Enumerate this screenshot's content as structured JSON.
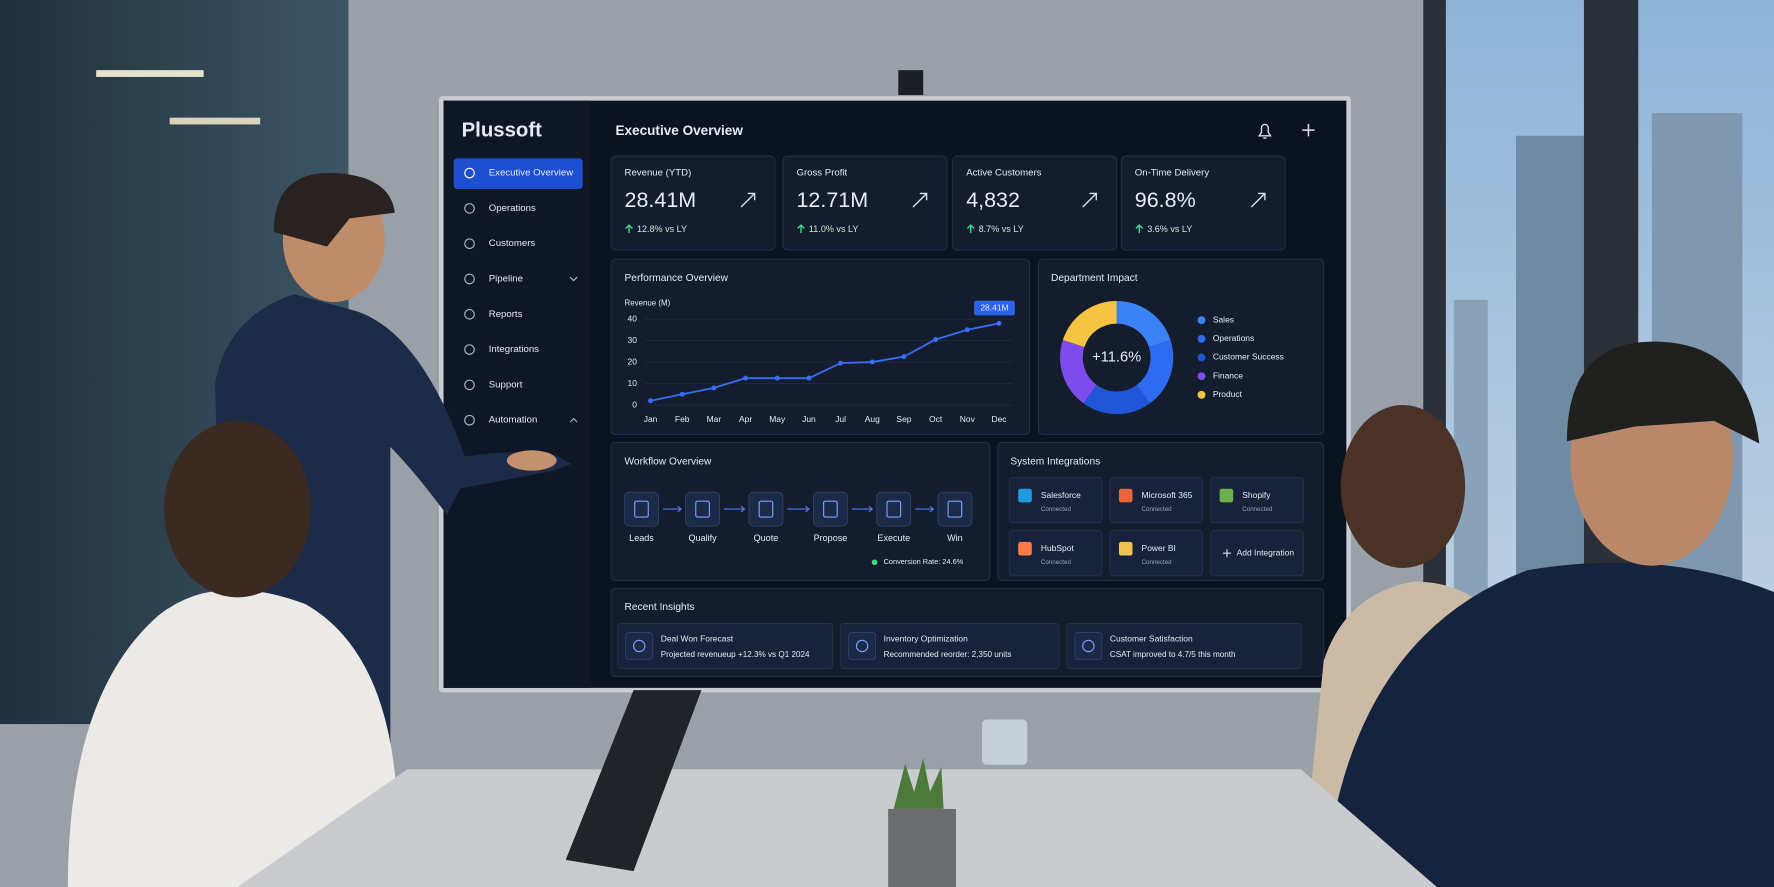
{
  "brand": "Plussoft",
  "nav": [
    "Executive Overview",
    "Operations",
    "Customers",
    "Pipeline",
    "Reports",
    "Integrations",
    "Support",
    "Automation"
  ],
  "header": {
    "title": "Executive Overview"
  },
  "kpis": [
    {
      "label": "Revenue (YTD)",
      "value": "28.41M",
      "change": "12.8% vs LY"
    },
    {
      "label": "Gross Profit",
      "value": "12.71M",
      "change": "11.0% vs LY"
    },
    {
      "label": "Active Customers",
      "value": "4,832",
      "change": "8.7% vs LY"
    },
    {
      "label": "On-Time Delivery",
      "value": "96.8%",
      "change": "3.6% vs LY"
    }
  ],
  "performance": {
    "title": "Performance Overview",
    "type": "line",
    "y_label": "Revenue (M)",
    "categories": [
      "Jan",
      "Feb",
      "Mar",
      "Apr",
      "May",
      "Jun",
      "Jul",
      "Aug",
      "Sep",
      "Oct",
      "Nov",
      "Dec"
    ],
    "values": [
      2,
      5,
      8,
      12.5,
      12.5,
      12.5,
      19.5,
      20,
      22.5,
      30.5,
      35,
      38
    ],
    "ylim": [
      0,
      40
    ],
    "yticks": [
      0,
      10,
      20,
      30,
      40
    ],
    "color": "#3b6cf6",
    "grid": true,
    "callout": "28.41M"
  },
  "department": {
    "title": "Department Impact",
    "center": "+11.6%",
    "items": [
      {
        "name": "Sales",
        "color": "#3b82f6"
      },
      {
        "name": "Operations",
        "color": "#2f6bf0"
      },
      {
        "name": "Customer Success",
        "color": "#1f55d6"
      },
      {
        "name": "Finance",
        "color": "#7c4dec"
      },
      {
        "name": "Product",
        "color": "#f5c542"
      }
    ]
  },
  "workflow": {
    "title": "Workflow Overview",
    "steps": [
      "Leads",
      "Qualify",
      "Quote",
      "Propose",
      "Execute",
      "Win"
    ],
    "conversion": "Conversion Rate: 24.6%"
  },
  "integrations": {
    "title": "System Integrations",
    "items": [
      {
        "name": "Salesforce",
        "status": "Connected"
      },
      {
        "name": "Microsoft 365",
        "status": "Connected"
      },
      {
        "name": "Shopify",
        "status": "Connected"
      },
      {
        "name": "HubSpot",
        "status": "Connected"
      },
      {
        "name": "Power BI",
        "status": "Connected"
      }
    ],
    "add": "Add Integration"
  },
  "insights": {
    "title": "Recent Insights",
    "items": [
      {
        "title": "Deal Won Forecast",
        "text": "Projected revenueup +12.3% vs Q1 2024"
      },
      {
        "title": "Inventory Optimization",
        "text": "Recommended reorder: 2,350 units"
      },
      {
        "title": "Customer Satisfaction",
        "text": "CSAT improved to 4.7/5 this month"
      }
    ]
  }
}
